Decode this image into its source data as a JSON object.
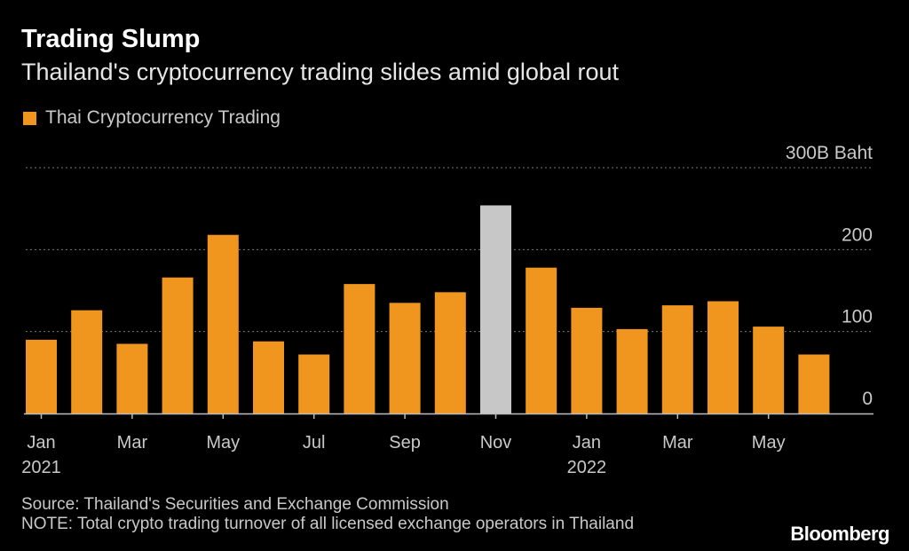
{
  "header": {
    "title": "Trading Slump",
    "subtitle": "Thailand's cryptocurrency trading slides amid global rout"
  },
  "legend": {
    "label": "Thai Cryptocurrency Trading"
  },
  "colors": {
    "bar": "#f0961f",
    "highlight": "#c7c7c7",
    "grid": "#7a7a7a"
  },
  "chart_data": {
    "type": "bar",
    "title": "Trading Slump",
    "subtitle": "Thailand's cryptocurrency trading slides amid global rout",
    "ylabel": "300B Baht",
    "ylim": [
      0,
      300
    ],
    "yticks": [
      {
        "value": 300,
        "label": "300B Baht"
      },
      {
        "value": 200,
        "label": "200"
      },
      {
        "value": 100,
        "label": "100"
      },
      {
        "value": 0,
        "label": "0"
      }
    ],
    "categories": [
      "Jan 2021",
      "Feb 2021",
      "Mar 2021",
      "Apr 2021",
      "May 2021",
      "Jun 2021",
      "Jul 2021",
      "Aug 2021",
      "Sep 2021",
      "Oct 2021",
      "Nov 2021",
      "Dec 2021",
      "Jan 2022",
      "Feb 2022",
      "Mar 2022",
      "Apr 2022",
      "May 2022",
      "Jun 2022"
    ],
    "series": [
      {
        "name": "Thai Cryptocurrency Trading",
        "values": [
          90,
          126,
          85,
          166,
          218,
          88,
          72,
          158,
          135,
          148,
          254,
          178,
          129,
          103,
          132,
          137,
          106,
          72
        ]
      }
    ],
    "highlight_index": 10,
    "xtick_labels": [
      {
        "index": 0,
        "label": "Jan",
        "year": "2021"
      },
      {
        "index": 2,
        "label": "Mar",
        "year": ""
      },
      {
        "index": 4,
        "label": "May",
        "year": ""
      },
      {
        "index": 6,
        "label": "Jul",
        "year": ""
      },
      {
        "index": 8,
        "label": "Sep",
        "year": ""
      },
      {
        "index": 10,
        "label": "Nov",
        "year": ""
      },
      {
        "index": 12,
        "label": "Jan",
        "year": "2022"
      },
      {
        "index": 14,
        "label": "Mar",
        "year": ""
      },
      {
        "index": 16,
        "label": "May",
        "year": ""
      }
    ]
  },
  "footer": {
    "source": "Source: Thailand's Securities and Exchange Commission",
    "note": "NOTE: Total crypto trading turnover of all licensed exchange operators in Thailand",
    "brand": "Bloomberg"
  }
}
